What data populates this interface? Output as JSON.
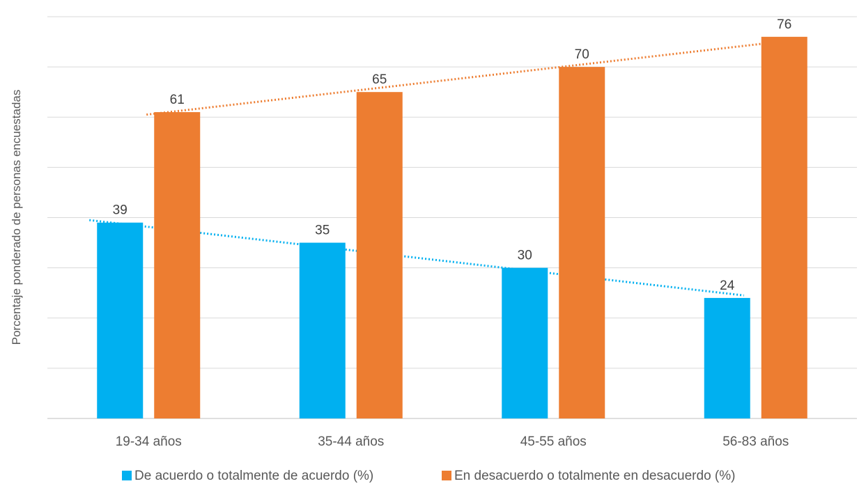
{
  "chart_data": {
    "type": "bar",
    "title": "",
    "xlabel": "",
    "ylabel": "Porcentaje ponderado de personas encuestadas",
    "categories": [
      "19-34 años",
      "35-44 años",
      "45-55 años",
      "56-83 años"
    ],
    "series": [
      {
        "name": "De acuerdo o totalmente de acuerdo (%)",
        "values": [
          39,
          35,
          30,
          24
        ],
        "color": "#00b0f0",
        "trendline": "linear"
      },
      {
        "name": "En desacuerdo o totalmente en desacuerdo (%)",
        "values": [
          61,
          65,
          70,
          76
        ],
        "color": "#ed7d31",
        "trendline": "linear"
      }
    ],
    "ylim": [
      0,
      80
    ],
    "y_grid_step": 10,
    "grid": true,
    "show_data_labels": true,
    "show_y_tick_labels": false,
    "legend_position": "bottom"
  }
}
